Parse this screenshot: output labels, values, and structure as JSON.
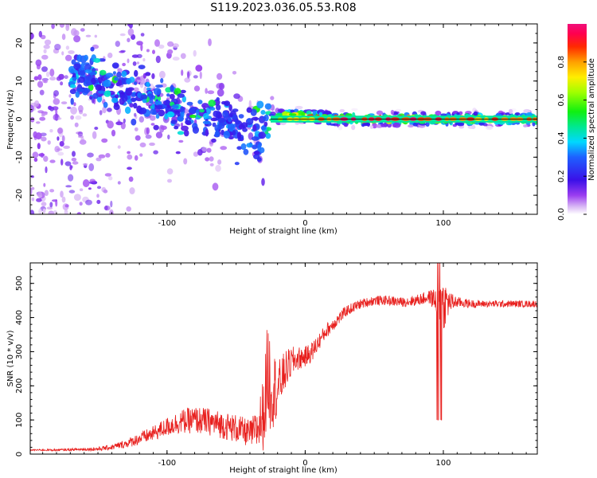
{
  "title": "S119.2023.036.05.53.R08",
  "colors": {
    "snr_line": "#e8201e",
    "zero_line": "#1a1a1a",
    "axis": "#000000"
  },
  "chart_data": [
    {
      "type": "heatmap",
      "xlabel": "Height of straight line (km)",
      "ylabel": "Frequency (Hz)",
      "xlim": [
        -199,
        168
      ],
      "ylim": [
        -25,
        25
      ],
      "x_ticks": [
        -100,
        0,
        100
      ],
      "y_ticks": [
        -20,
        -10,
        0,
        10,
        20
      ],
      "grid": false,
      "colorbar": {
        "label": "Normalized spectral amplitude",
        "range": [
          0,
          1
        ],
        "ticks": [
          "0.0",
          "0.2",
          "0.4",
          "0.6",
          "0.8"
        ],
        "colormap": "rainbow (white-violet-blue-cyan-green-yellow-red-magenta)"
      },
      "ridge": {
        "x": [
          -155,
          -140,
          -120,
          -100,
          -85,
          -70,
          -55,
          -45,
          -35,
          -30,
          -25,
          -15,
          0,
          20,
          50,
          80,
          100,
          130,
          168
        ],
        "freq": [
          11,
          9,
          6,
          4,
          2,
          1,
          -1,
          -3,
          -4,
          -3,
          0,
          1,
          1,
          0,
          0,
          0,
          0,
          0,
          0
        ],
        "amplitude": [
          0.3,
          0.3,
          0.35,
          0.35,
          0.35,
          0.4,
          0.4,
          0.45,
          0.5,
          0.45,
          0.6,
          0.75,
          0.8,
          0.95,
          1.0,
          0.95,
          0.9,
          0.85,
          0.8
        ]
      }
    },
    {
      "type": "line",
      "xlabel": "Height of straight line (km)",
      "ylabel": "SNR (10 * v/v)",
      "xlim": [
        -199,
        168
      ],
      "ylim": [
        0,
        560
      ],
      "x_ticks": [
        -100,
        0,
        100
      ],
      "y_ticks": [
        0,
        100,
        200,
        300,
        400,
        500
      ],
      "grid": false,
      "series": [
        {
          "x": [
            -199,
            -180,
            -160,
            -150,
            -140,
            -130,
            -120,
            -110,
            -100,
            -90,
            -80,
            -70,
            -60,
            -50,
            -40,
            -35,
            -30,
            -27,
            -25,
            -20,
            -15,
            -10,
            -5,
            0,
            5,
            10,
            15,
            20,
            25,
            30,
            40,
            50,
            60,
            70,
            80,
            90,
            95,
            100,
            105,
            110,
            120,
            130,
            140,
            150,
            160,
            168
          ],
          "y": [
            12,
            12,
            14,
            15,
            20,
            30,
            45,
            60,
            80,
            95,
            100,
            95,
            85,
            75,
            60,
            70,
            120,
            250,
            200,
            190,
            240,
            270,
            280,
            285,
            300,
            330,
            360,
            380,
            400,
            420,
            440,
            450,
            450,
            445,
            450,
            460,
            450,
            440,
            445,
            445,
            440,
            440,
            440,
            440,
            440,
            440
          ],
          "noise": [
            2,
            3,
            4,
            6,
            8,
            12,
            18,
            22,
            28,
            35,
            40,
            40,
            40,
            42,
            40,
            60,
            110,
            160,
            140,
            80,
            60,
            45,
            35,
            30,
            30,
            25,
            22,
            20,
            18,
            16,
            14,
            14,
            14,
            14,
            16,
            20,
            40,
            80,
            30,
            16,
            12,
            10,
            10,
            10,
            10,
            10
          ]
        }
      ]
    }
  ]
}
